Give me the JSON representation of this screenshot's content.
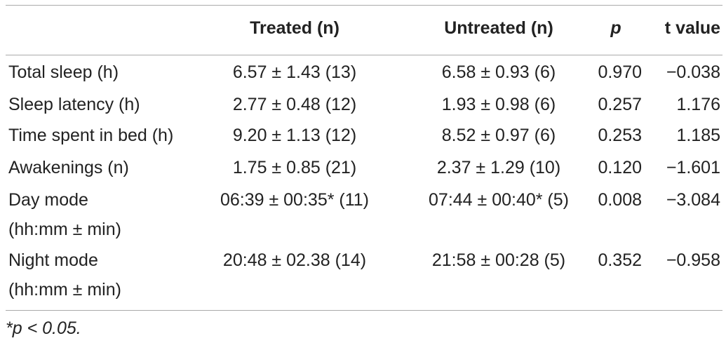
{
  "table": {
    "columns": [
      "Treated (n)",
      "Untreated (n)",
      "p",
      "t value"
    ],
    "rows": [
      [
        "Total sleep (h)",
        "6.57 ± 1.43 (13)",
        "6.58 ± 0.93 (6)",
        "0.970",
        "−0.038"
      ],
      [
        "Sleep latency (h)",
        "2.77 ± 0.48 (12)",
        "1.93 ± 0.98 (6)",
        "0.257",
        "1.176"
      ],
      [
        "Time spent in bed (h)",
        "9.20 ± 1.13 (12)",
        "8.52 ± 0.97 (6)",
        "0.253",
        "1.185"
      ],
      [
        "Awakenings (n)",
        "1.75 ± 0.85 (21)",
        "2.37 ± 1.29 (10)",
        "0.120",
        "−1.601"
      ],
      [
        "Day mode\n(hh:mm ± min)",
        "06:39 ± 00:35* (11)",
        "07:44 ± 00:40* (5)",
        "0.008",
        "−3.084"
      ],
      [
        "Night mode\n(hh:mm ± min)",
        "20:48 ± 02.38 (14)",
        "21:58 ± 00:28 (5)",
        "0.352",
        "−0.958"
      ]
    ],
    "footnote": "*p < 0.05."
  }
}
